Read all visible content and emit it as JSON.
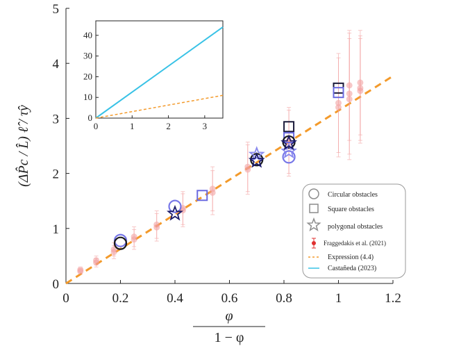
{
  "chart_data": {
    "type": "scatter",
    "xlabel_num": "φ",
    "xlabel_den": "1 − φ",
    "ylabel": "(ΔP̂c / L̂) ℓ̂ / τ̂y",
    "xlim": [
      0,
      1.2
    ],
    "ylim": [
      0,
      5
    ],
    "xticks": [
      "0",
      "0.2",
      "0.4",
      "0.6",
      "0.8",
      "1",
      "1.2"
    ],
    "yticks": [
      "0",
      "1",
      "2",
      "3",
      "4",
      "5"
    ],
    "grid": false,
    "legend_position": "bottom-right",
    "series": [
      {
        "name": "Circular obstacles",
        "marker": "circle",
        "points": [
          [
            0.2,
            0.78
          ],
          [
            0.2,
            0.73
          ],
          [
            0.4,
            1.4
          ],
          [
            0.7,
            2.25
          ],
          [
            0.818,
            2.3
          ],
          [
            0.818,
            2.57
          ]
        ]
      },
      {
        "name": "Square obstacles",
        "marker": "square",
        "points": [
          [
            0.5,
            1.6
          ],
          [
            0.818,
            2.85
          ],
          [
            0.818,
            2.65
          ],
          [
            1.0,
            3.55
          ],
          [
            1.0,
            3.47
          ]
        ]
      },
      {
        "name": "polygonal obstacles",
        "marker": "star",
        "points": [
          [
            0.4,
            1.27
          ],
          [
            0.7,
            2.34
          ],
          [
            0.7,
            2.23
          ],
          [
            0.818,
            2.4
          ],
          [
            0.818,
            2.55
          ]
        ]
      },
      {
        "name": "Fraggedakis et al. (2021)",
        "marker": "errorbar-dot",
        "points": [
          [
            0.053,
            0.25
          ],
          [
            0.053,
            0.22
          ],
          [
            0.111,
            0.42
          ],
          [
            0.111,
            0.38
          ],
          [
            0.176,
            0.62
          ],
          [
            0.176,
            0.57
          ],
          [
            0.25,
            0.85
          ],
          [
            0.25,
            0.8
          ],
          [
            0.333,
            1.07
          ],
          [
            0.333,
            1.02
          ],
          [
            0.429,
            1.37
          ],
          [
            0.429,
            1.33
          ],
          [
            0.538,
            1.72
          ],
          [
            0.538,
            1.65
          ],
          [
            0.667,
            2.12
          ],
          [
            0.667,
            2.07
          ],
          [
            0.818,
            2.6
          ],
          [
            0.818,
            2.55
          ],
          [
            1.0,
            3.28
          ],
          [
            1.0,
            3.2
          ],
          [
            1.04,
            3.45
          ],
          [
            1.04,
            3.35
          ],
          [
            1.04,
            3.6
          ],
          [
            1.08,
            3.55
          ],
          [
            1.08,
            3.5
          ],
          [
            1.08,
            3.65
          ]
        ],
        "yerr": [
          0.05,
          0.05,
          0.08,
          0.08,
          0.12,
          0.12,
          0.18,
          0.18,
          0.25,
          0.25,
          0.3,
          0.3,
          0.4,
          0.4,
          0.45,
          0.45,
          0.6,
          0.6,
          0.9,
          0.9,
          1.1,
          1.1,
          1.0,
          0.95,
          0.95,
          0.95
        ]
      },
      {
        "name": "Expression (4.4)",
        "marker": "dashed-line",
        "x": [
          0,
          1.2
        ],
        "y": [
          0,
          3.77
        ]
      }
    ],
    "inset": {
      "xlim": [
        0,
        3.5
      ],
      "ylim": [
        0,
        47
      ],
      "xticks": [
        "0",
        "1",
        "2",
        "3"
      ],
      "yticks": [
        "0",
        "10",
        "20",
        "30",
        "40"
      ],
      "series": [
        {
          "name": "Castañeda (2023)",
          "x": [
            0,
            3.5
          ],
          "y": [
            0,
            44
          ]
        },
        {
          "name": "Expression (4.4)",
          "x": [
            0,
            3.5
          ],
          "y": [
            0,
            11
          ]
        }
      ]
    },
    "colors": {
      "circle": "#1a1a1a",
      "circle_alt": "#7777e8",
      "square": "#1a1a3a",
      "square_alt": "#6a6ae0",
      "star": "#1a1a6a",
      "star_alt": "#8888ee",
      "fragg": "#f29a9a",
      "expression": "#f39a2b",
      "castaneda": "#38c2e6",
      "legend_grey": "#8c8c8c"
    },
    "legend": [
      "Circular obstacles",
      "Square obstacles",
      "polygonal obstacles",
      "Fraggedakis et al. (2021)",
      "Expression (4.4)",
      "Castañeda (2023)"
    ]
  }
}
